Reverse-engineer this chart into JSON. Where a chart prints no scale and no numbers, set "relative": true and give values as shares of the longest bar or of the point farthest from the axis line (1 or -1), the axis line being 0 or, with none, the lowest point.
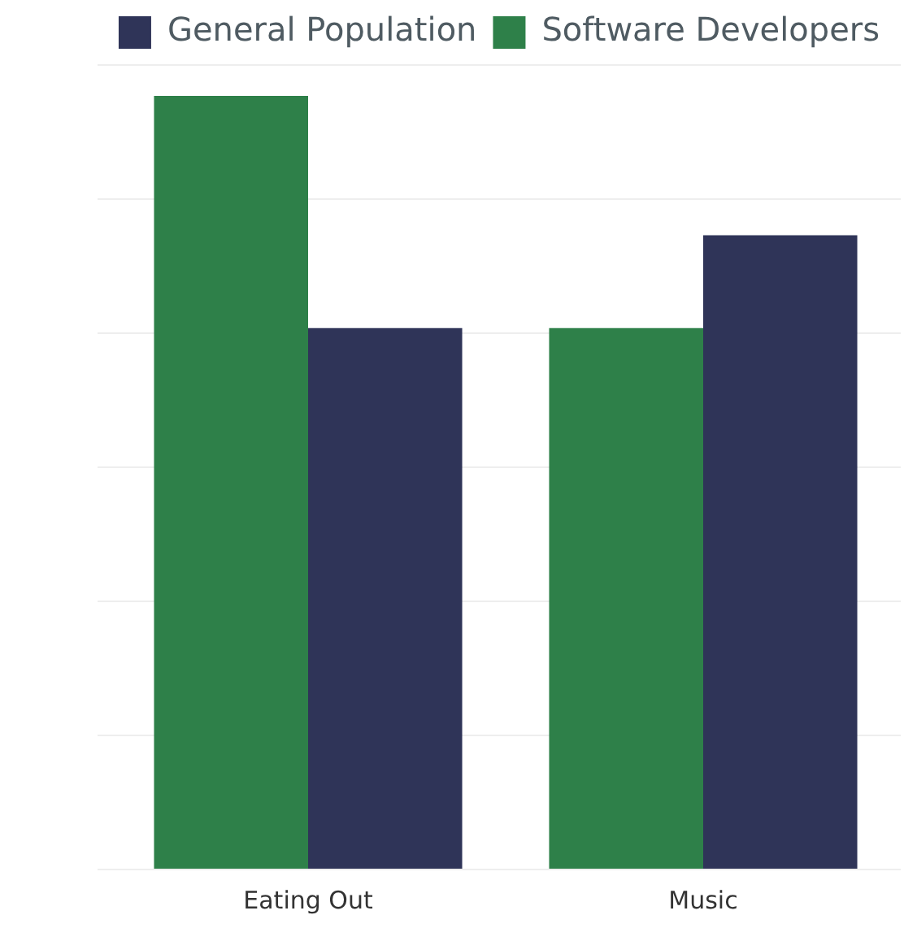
{
  "chart_data": {
    "type": "bar",
    "relative": true,
    "categories": [
      "Eating Out",
      "Music"
    ],
    "series": [
      {
        "name": "Software Developers",
        "color": "#2e8049",
        "values": [
          1,
          0.7
        ]
      },
      {
        "name": "General Population",
        "color": "#2f3458",
        "values": [
          0.7,
          0.82
        ]
      }
    ],
    "legend": "top",
    "grid": "y",
    "tick_labels": "x"
  }
}
